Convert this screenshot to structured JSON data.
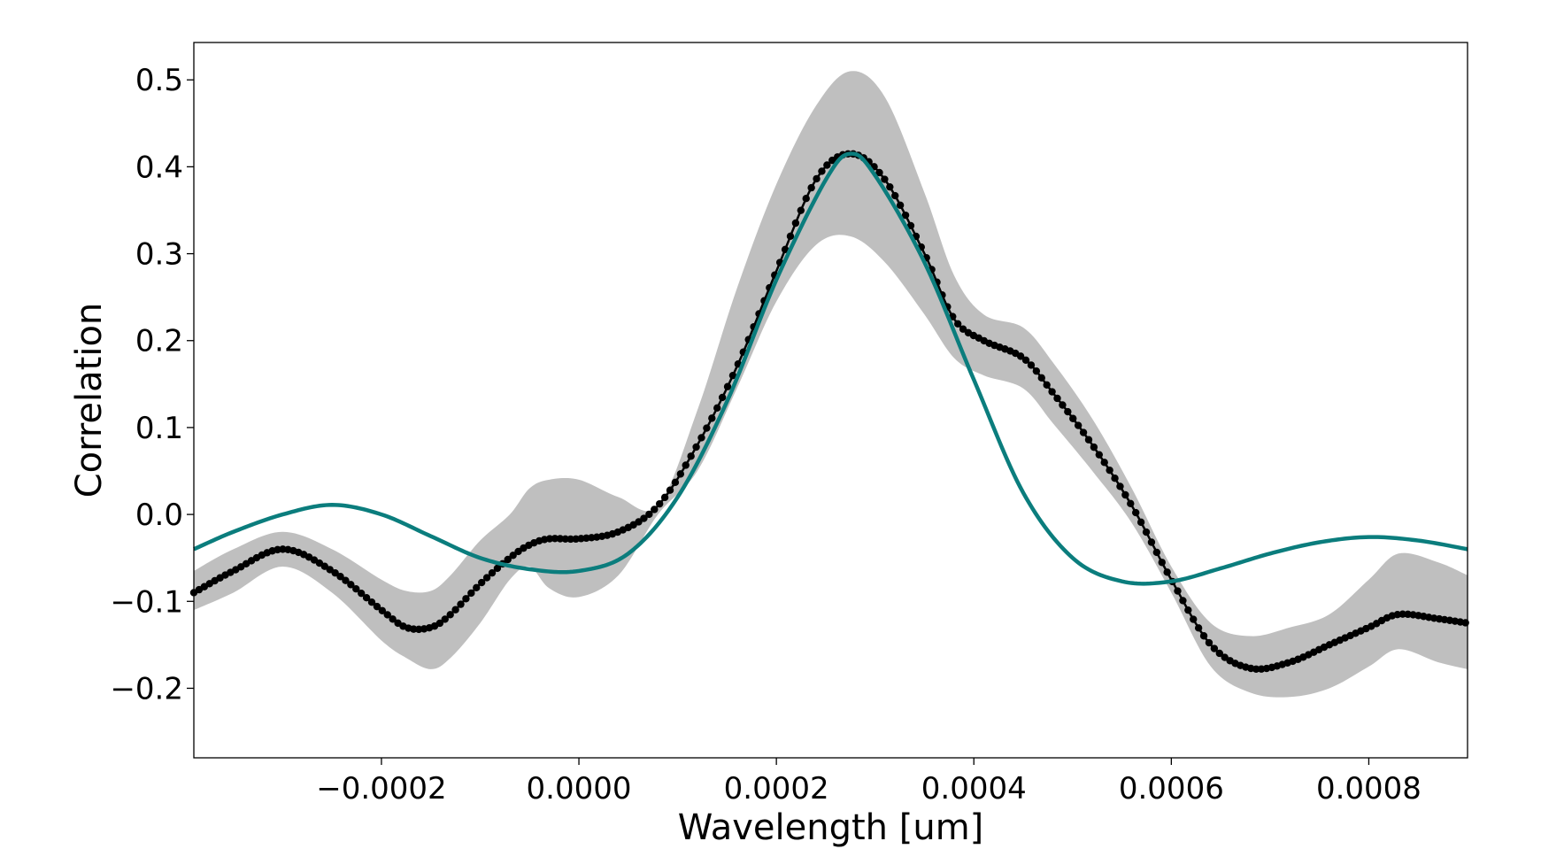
{
  "chart_data": {
    "type": "line",
    "title": "",
    "xlabel": "Wavelength [um]",
    "ylabel": "Correlation",
    "xlim": [
      -0.00039,
      0.0009
    ],
    "ylim": [
      -0.28,
      0.543
    ],
    "xticks": [
      {
        "value": -0.0002,
        "label": "−0.0002"
      },
      {
        "value": 0.0,
        "label": "0.0000"
      },
      {
        "value": 0.0002,
        "label": "0.0002"
      },
      {
        "value": 0.0004,
        "label": "0.0004"
      },
      {
        "value": 0.0006,
        "label": "0.0006"
      },
      {
        "value": 0.0008,
        "label": "0.0008"
      }
    ],
    "yticks": [
      {
        "value": -0.2,
        "label": "−0.2"
      },
      {
        "value": -0.1,
        "label": "−0.1"
      },
      {
        "value": 0.0,
        "label": "0.0"
      },
      {
        "value": 0.1,
        "label": "0.1"
      },
      {
        "value": 0.2,
        "label": "0.2"
      },
      {
        "value": 0.3,
        "label": "0.3"
      },
      {
        "value": 0.4,
        "label": "0.4"
      },
      {
        "value": 0.5,
        "label": "0.5"
      }
    ],
    "grid": false,
    "legend": false,
    "series": [
      {
        "kind": "line-with-points",
        "color": "#000000",
        "x": [
          -0.00039,
          -0.00035,
          -0.0003,
          -0.00025,
          -0.0002,
          -0.000175,
          -0.00015,
          -0.00013,
          -0.0001,
          -7e-05,
          -5e-05,
          -3e-05,
          0.0,
          4e-05,
          8e-05,
          0.00012,
          0.00016,
          0.0002,
          0.00024,
          0.000275,
          0.00031,
          0.00035,
          0.00038,
          0.00041,
          0.00045,
          0.00048,
          0.00052,
          0.00056,
          0.0006,
          0.00064,
          0.00068,
          0.00072,
          0.00076,
          0.0008,
          0.00083,
          0.00087,
          0.0009
        ],
        "y": [
          -0.09,
          -0.065,
          -0.04,
          -0.065,
          -0.11,
          -0.13,
          -0.13,
          -0.115,
          -0.08,
          -0.05,
          -0.035,
          -0.028,
          -0.028,
          -0.02,
          0.01,
          0.08,
          0.17,
          0.28,
          0.385,
          0.415,
          0.385,
          0.3,
          0.225,
          0.2,
          0.18,
          0.14,
          0.08,
          0.01,
          -0.075,
          -0.15,
          -0.177,
          -0.17,
          -0.15,
          -0.13,
          -0.115,
          -0.12,
          -0.125
        ]
      },
      {
        "kind": "band",
        "color": "#bfbfbf",
        "x": [
          -0.00039,
          -0.00035,
          -0.0003,
          -0.00025,
          -0.0002,
          -0.000175,
          -0.00015,
          -0.00013,
          -0.0001,
          -7e-05,
          -5e-05,
          -3e-05,
          0.0,
          4e-05,
          8e-05,
          0.00012,
          0.00016,
          0.0002,
          0.00024,
          0.000275,
          0.00031,
          0.00035,
          0.00038,
          0.00041,
          0.00045,
          0.00048,
          0.00052,
          0.00056,
          0.0006,
          0.00064,
          0.00068,
          0.00072,
          0.00076,
          0.0008,
          0.00083,
          0.00087,
          0.0009
        ],
        "upper": [
          -0.065,
          -0.04,
          -0.02,
          -0.04,
          -0.075,
          -0.088,
          -0.088,
          -0.07,
          -0.03,
          0.0,
          0.03,
          0.04,
          0.04,
          0.02,
          0.01,
          0.12,
          0.26,
          0.38,
          0.47,
          0.51,
          0.48,
          0.37,
          0.275,
          0.23,
          0.215,
          0.175,
          0.11,
          0.03,
          -0.06,
          -0.125,
          -0.14,
          -0.13,
          -0.115,
          -0.075,
          -0.045,
          -0.055,
          -0.07
        ],
        "lower": [
          -0.11,
          -0.09,
          -0.06,
          -0.09,
          -0.145,
          -0.165,
          -0.178,
          -0.165,
          -0.125,
          -0.075,
          -0.06,
          -0.085,
          -0.095,
          -0.07,
          0.0,
          0.05,
          0.145,
          0.245,
          0.31,
          0.32,
          0.29,
          0.23,
          0.18,
          0.16,
          0.145,
          0.105,
          0.05,
          -0.01,
          -0.09,
          -0.175,
          -0.205,
          -0.21,
          -0.2,
          -0.175,
          -0.155,
          -0.17,
          -0.178
        ]
      },
      {
        "kind": "line",
        "color": "#0b7d7d",
        "x": [
          -0.00039,
          -0.00035,
          -0.0003,
          -0.00025,
          -0.0002,
          -0.00015,
          -0.0001,
          -5e-05,
          0.0,
          5e-05,
          0.0001,
          0.00015,
          0.0002,
          0.00025,
          0.000275,
          0.0003,
          0.00035,
          0.0004,
          0.00045,
          0.0005,
          0.00055,
          0.0006,
          0.00065,
          0.0007,
          0.00075,
          0.0008,
          0.00085,
          0.0009
        ],
        "y": [
          -0.04,
          -0.02,
          0.0,
          0.011,
          0.0,
          -0.025,
          -0.05,
          -0.063,
          -0.065,
          -0.045,
          0.02,
          0.13,
          0.27,
          0.385,
          0.415,
          0.39,
          0.29,
          0.155,
          0.025,
          -0.05,
          -0.077,
          -0.077,
          -0.062,
          -0.045,
          -0.032,
          -0.026,
          -0.03,
          -0.04
        ]
      }
    ]
  }
}
